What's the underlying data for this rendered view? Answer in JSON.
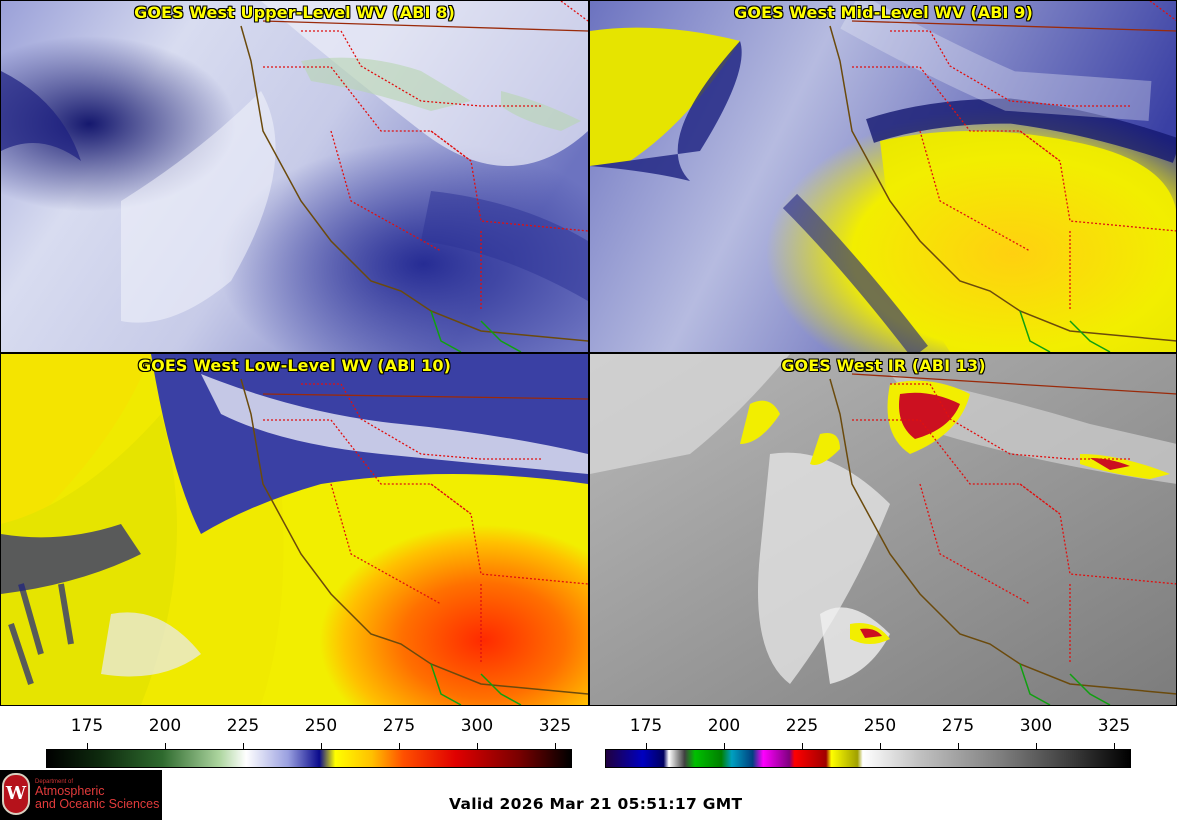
{
  "panels": [
    {
      "title": "GOES West Upper-Level WV (ABI 8)"
    },
    {
      "title": "GOES West Mid-Level WV (ABI 9)"
    },
    {
      "title": "GOES West Low-Level WV (ABI 10)"
    },
    {
      "title": "GOES West IR (ABI 13)"
    }
  ],
  "colorbars": [
    {
      "ticks": [
        "175",
        "200",
        "225",
        "250",
        "275",
        "300",
        "325"
      ]
    },
    {
      "ticks": [
        "175",
        "200",
        "225",
        "250",
        "275",
        "300",
        "325"
      ]
    }
  ],
  "valid_time": "Valid 2026 Mar 21 05:51:17 GMT",
  "logo": {
    "department": "Department of",
    "line1": "Atmospheric",
    "line2": "and Oceanic Sciences",
    "seal_letter": "W"
  },
  "colors": {
    "title_text": "#ffff00",
    "wv_dark": "#1a1e8c",
    "wv_light": "#e8eaf6",
    "wv_yellow": "#f2ee00",
    "wv_red": "#ff2a00",
    "state_lines": "#e01010",
    "coast_line": "#6b4a0c",
    "mexico_line": "#10a010"
  }
}
